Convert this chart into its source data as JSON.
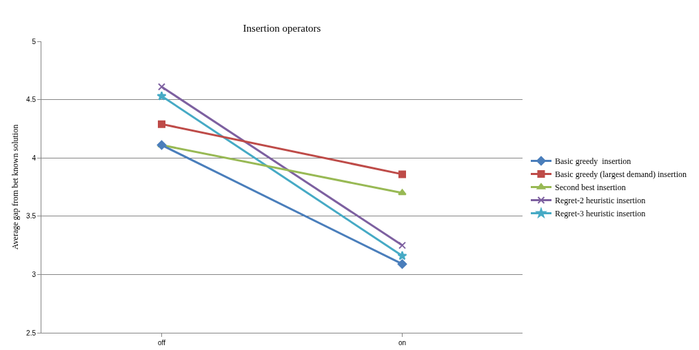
{
  "chart_data": {
    "type": "line",
    "title": "Insertion operators",
    "ylabel": "Average gap from bet known solution",
    "categories": [
      "off",
      "on"
    ],
    "series": [
      {
        "name": "Basic greedy  insertion",
        "color": "#4a7ebb",
        "values": [
          4.11,
          3.09
        ],
        "marker": "diamond"
      },
      {
        "name": "Basic greedy (largest demand) insertion",
        "color": "#be4b48",
        "values": [
          4.29,
          3.86
        ],
        "marker": "square"
      },
      {
        "name": "Second best insertion",
        "color": "#98b954",
        "values": [
          4.11,
          3.7
        ],
        "marker": "triangle"
      },
      {
        "name": "Regret-2 heuristic insertion",
        "color": "#7d60a0",
        "values": [
          4.61,
          3.25
        ],
        "marker": "cross"
      },
      {
        "name": "Regret-3 heuristic insertion",
        "color": "#46aac5",
        "values": [
          4.53,
          3.16
        ],
        "marker": "star"
      }
    ],
    "ylim": [
      2.5,
      5
    ],
    "yticks": [
      2.5,
      3,
      3.5,
      4,
      4.5,
      5
    ],
    "grid": "y",
    "legend": "right",
    "line_style": "solid"
  }
}
